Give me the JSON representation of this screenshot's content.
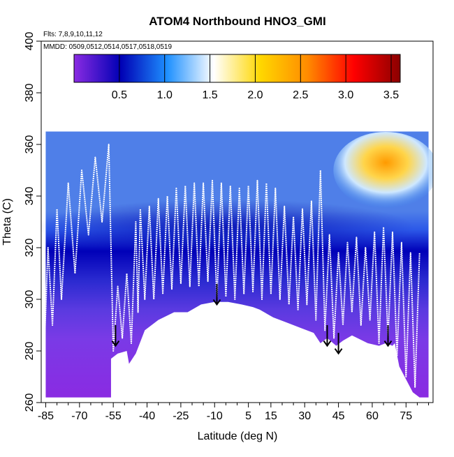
{
  "chart_data": {
    "type": "heatmap",
    "title": "ATOM4 Northbound HNO3_GMI",
    "annotations": {
      "flights": "Flts: 7,8,9,10,11,12",
      "dates": "MMDD: 0509,0512,0514,0517,0518,0519"
    },
    "xlabel": "Latitude (deg N)",
    "ylabel": "Theta (C)",
    "xlim": [
      -87,
      87
    ],
    "ylim": [
      260,
      400
    ],
    "x_ticks": [
      "-85",
      "-70",
      "-55",
      "-40",
      "-25",
      "-10",
      "5",
      "15",
      "30",
      "45",
      "60",
      "75"
    ],
    "x_tick_values": [
      -85,
      -70,
      -55,
      -40,
      -25,
      -10,
      5,
      15,
      30,
      45,
      60,
      75
    ],
    "y_ticks": [
      "260",
      "280",
      "300",
      "320",
      "340",
      "360",
      "380",
      "400"
    ],
    "colorbar": {
      "range": [
        0,
        3.6
      ],
      "ticks": [
        "0.5",
        "1.0",
        "1.5",
        "2.0",
        "2.5",
        "3.0",
        "3.5"
      ],
      "tick_values": [
        0.5,
        1.0,
        1.5,
        2.0,
        2.5,
        3.0,
        3.5
      ],
      "colors": [
        "#8a2be2",
        "#0000b4",
        "#1e90ff",
        "#ffffff",
        "#ffd700",
        "#ff8c00",
        "#ff0000",
        "#8b0000"
      ]
    },
    "surface_profile": {
      "lat": [
        -85,
        -83,
        -56,
        -56,
        -53,
        -49,
        -48,
        -45,
        -41,
        -35,
        -28,
        -25,
        -22,
        -16,
        -10,
        -4,
        2,
        7,
        10,
        16,
        22,
        28,
        34,
        37,
        40,
        44,
        47,
        51,
        58,
        63,
        66,
        69,
        70,
        72,
        78,
        81,
        83,
        85
      ],
      "theta": [
        262,
        262,
        262,
        277,
        279,
        280,
        275,
        279,
        288,
        292,
        295,
        295,
        295,
        298,
        299,
        299,
        298,
        297,
        296,
        293,
        291,
        289,
        287,
        283,
        285,
        282,
        284,
        286,
        283,
        282,
        283,
        282,
        283,
        274,
        264,
        262,
        262,
        262
      ]
    },
    "arrows": [
      {
        "lat": -54,
        "theta_top": 290,
        "theta_tip": 282
      },
      {
        "lat": -9,
        "theta_top": 306,
        "theta_tip": 298
      },
      {
        "lat": 40,
        "theta_top": 290,
        "theta_tip": 282
      },
      {
        "lat": 45,
        "theta_top": 287,
        "theta_tip": 279
      },
      {
        "lat": 67,
        "theta_top": 290,
        "theta_tip": 282
      }
    ],
    "flight_track": {
      "lat": [
        -86,
        -84,
        -82,
        -80,
        -78,
        -75,
        -72,
        -69,
        -66,
        -63,
        -60,
        -57,
        -55,
        -53,
        -51,
        -49,
        -47,
        -45,
        -44,
        -43,
        -41,
        -39,
        -37,
        -35,
        -33,
        -31,
        -29,
        -27,
        -25,
        -23,
        -21,
        -19,
        -17,
        -15,
        -13,
        -11,
        -9,
        -7,
        -5,
        -3,
        -1,
        1,
        3,
        5,
        7,
        9,
        11,
        13,
        15,
        17,
        19,
        21,
        23,
        25,
        27,
        29,
        31,
        33,
        35,
        37,
        39,
        41,
        43,
        45,
        47,
        49,
        51,
        53,
        55,
        57,
        59,
        61,
        63,
        65,
        67,
        69,
        71,
        73,
        75,
        77,
        79,
        81
      ],
      "theta": [
        272,
        320,
        290,
        335,
        300,
        345,
        310,
        350,
        325,
        355,
        330,
        360,
        280,
        305,
        285,
        310,
        283,
        330,
        295,
        335,
        300,
        336,
        300,
        339,
        302,
        340,
        304,
        343,
        306,
        344,
        305,
        345,
        305,
        345,
        307,
        346,
        300,
        345,
        301,
        344,
        300,
        343,
        302,
        344,
        303,
        346,
        300,
        345,
        302,
        343,
        300,
        336,
        298,
        332,
        296,
        335,
        298,
        338,
        292,
        350,
        288,
        325,
        285,
        318,
        290,
        322,
        295,
        324,
        290,
        320,
        292,
        326,
        283,
        328,
        285,
        326,
        278,
        322,
        270,
        318,
        266,
        318
      ]
    }
  }
}
